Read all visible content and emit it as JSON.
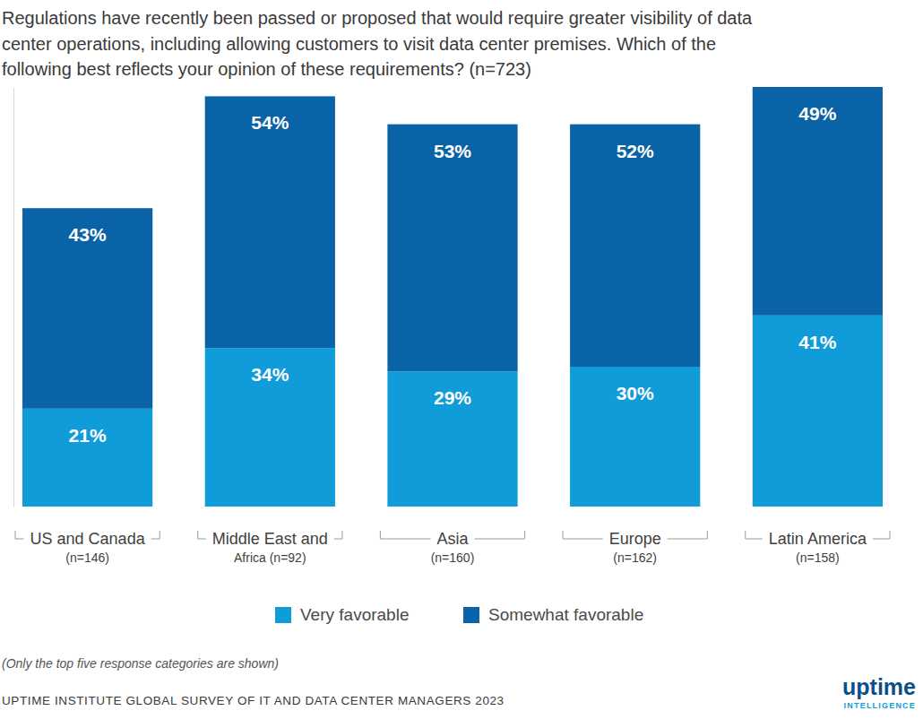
{
  "chart_data": {
    "type": "bar",
    "title": "Regulations have recently been passed or proposed that would require greater visibility of data\ncenter operations, including allowing customers to visit data center premises. Which of the\nfollowing best reflects your opinion of these requirements? (n=723)",
    "categories": [
      "US and Canada\n(n=146)",
      "Middle East and\nAfrica (n=92)",
      "Asia\n(n=160)",
      "Europe\n(n=162)",
      "Latin America\n(n=158)"
    ],
    "series": [
      {
        "name": "Very favorable",
        "color": "#0f9cd9",
        "values": [
          21,
          34,
          29,
          30,
          41
        ],
        "value_labels": [
          "21%",
          "34%",
          "29%",
          "30%",
          "41%"
        ]
      },
      {
        "name": "Somewhat favorable",
        "color": "#0b63a7",
        "values": [
          43,
          54,
          53,
          52,
          49
        ],
        "value_labels": [
          "43%",
          "54%",
          "53%",
          "52%",
          "49%"
        ]
      }
    ],
    "stacked": true,
    "data_labels": true,
    "tick_labels": false,
    "grid": false,
    "legend": "bottom",
    "ylim": [
      0,
      90
    ],
    "yticks": [],
    "note": "(Only the top five response categories are shown)",
    "source": "UPTIME INSTITUTE GLOBAL SURVEY OF IT AND DATA CENTER MANAGERS 2023",
    "logo": [
      "uptime",
      "INTELLIGENCE"
    ]
  }
}
